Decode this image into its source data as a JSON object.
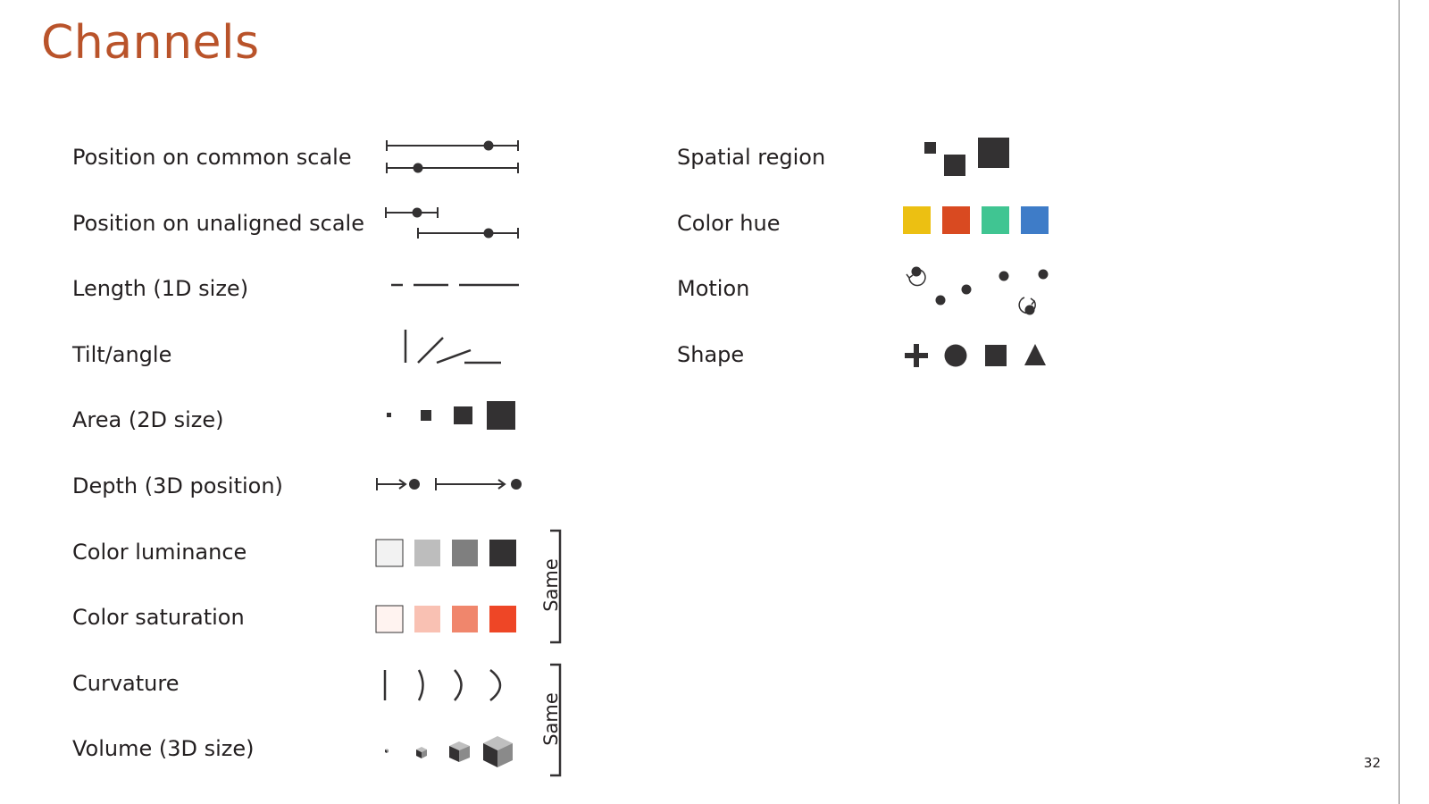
{
  "slide": {
    "title": "Channels",
    "page_number": "32"
  },
  "left_channels": [
    {
      "label": "Position on common scale",
      "icon": "position-common-scale-icon"
    },
    {
      "label": "Position on unaligned scale",
      "icon": "position-unaligned-scale-icon"
    },
    {
      "label": "Length (1D size)",
      "icon": "length-icon"
    },
    {
      "label": "Tilt/angle",
      "icon": "tilt-angle-icon"
    },
    {
      "label": "Area (2D size)",
      "icon": "area-icon"
    },
    {
      "label": "Depth (3D position)",
      "icon": "depth-icon"
    },
    {
      "label": "Color luminance",
      "icon": "color-luminance-icon"
    },
    {
      "label": "Color saturation",
      "icon": "color-saturation-icon"
    },
    {
      "label": "Curvature",
      "icon": "curvature-icon"
    },
    {
      "label": "Volume (3D size)",
      "icon": "volume-icon"
    }
  ],
  "right_channels": [
    {
      "label": "Spatial region",
      "icon": "spatial-region-icon"
    },
    {
      "label": "Color hue",
      "icon": "color-hue-icon"
    },
    {
      "label": "Motion",
      "icon": "motion-icon"
    },
    {
      "label": "Shape",
      "icon": "shape-icon"
    }
  ],
  "brackets": [
    {
      "label": "Same",
      "groups": [
        "Color luminance",
        "Color saturation"
      ]
    },
    {
      "label": "Same",
      "groups": [
        "Curvature",
        "Volume (3D size)"
      ]
    }
  ],
  "colors": {
    "title": "#b9532a",
    "glyph": "#333132",
    "luminance": [
      "#f2f2f2",
      "#bdbdbd",
      "#7f7f7f",
      "#333132"
    ],
    "saturation": [
      "#fff3f0",
      "#f9c1b3",
      "#f0866c",
      "#ee4626"
    ],
    "hue": [
      "#ecc012",
      "#d94a21",
      "#40c592",
      "#3e7cc8"
    ]
  }
}
